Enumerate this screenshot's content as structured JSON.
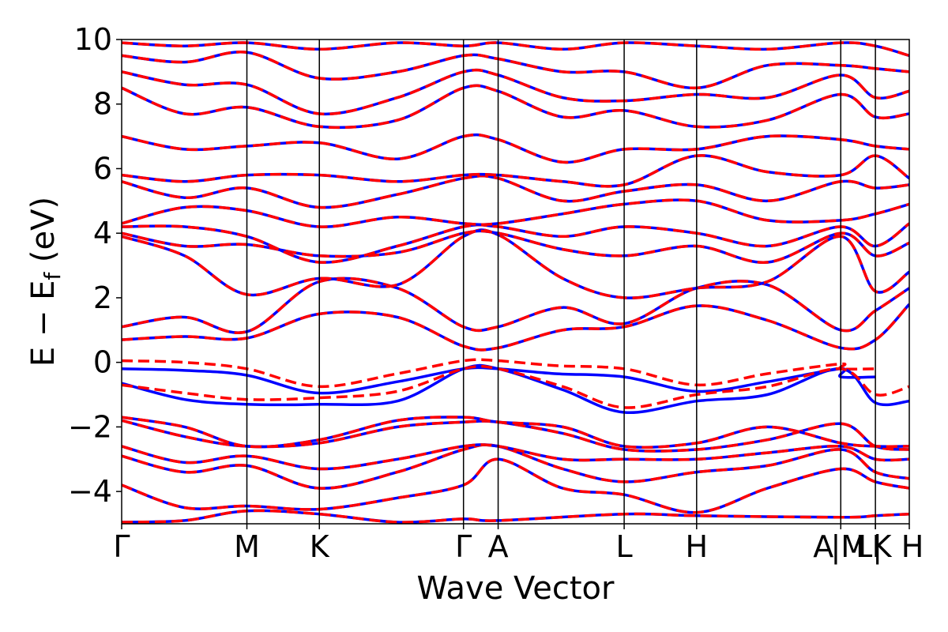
{
  "chart_data": {
    "type": "line",
    "title": "",
    "xlabel": "Wave Vector",
    "ylabel_main": "E − E",
    "ylabel_sub": "f",
    "ylabel_unit": " (eV)",
    "ylim": [
      -5,
      10
    ],
    "yticks": [
      -4,
      -2,
      0,
      2,
      4,
      6,
      8,
      10
    ],
    "ytick_labels": [
      "−4",
      "−2",
      "0",
      "2",
      "4",
      "6",
      "8",
      "10"
    ],
    "xlim": [
      0,
      1
    ],
    "kpoints": [
      {
        "label": "Γ",
        "x": 0.0
      },
      {
        "label": "M",
        "x": 0.159
      },
      {
        "label": "K",
        "x": 0.251
      },
      {
        "label": "Γ",
        "x": 0.434
      },
      {
        "label": "A",
        "x": 0.478
      },
      {
        "label": "L",
        "x": 0.638
      },
      {
        "label": "H",
        "x": 0.73
      },
      {
        "label": "A",
        "x": 0.913
      },
      {
        "label": "|M",
        "x": 0.913
      },
      {
        "label": "L|",
        "x": 0.957
      },
      {
        "label": "K",
        "x": 0.957
      },
      {
        "label": "H",
        "x": 1.0
      }
    ],
    "grid": false,
    "series_styles": [
      {
        "style": "solid",
        "color": "#0000ff"
      },
      {
        "style": "dashed",
        "color": "#ff0000"
      }
    ],
    "highlighted_bands": [
      {
        "solid": [
          [
            0,
            -0.2
          ],
          [
            0.08,
            -0.25
          ],
          [
            0.159,
            -0.4
          ],
          [
            0.25,
            -0.95
          ],
          [
            0.35,
            -0.6
          ],
          [
            0.434,
            -0.2
          ],
          [
            0.478,
            -0.2
          ],
          [
            0.55,
            -0.35
          ],
          [
            0.638,
            -0.45
          ],
          [
            0.73,
            -0.9
          ],
          [
            0.82,
            -0.6
          ],
          [
            0.913,
            -0.2
          ],
          [
            0.913,
            -0.45
          ],
          [
            0.957,
            -0.45
          ]
        ],
        "dashed": [
          [
            0,
            0.05
          ],
          [
            0.08,
            0.0
          ],
          [
            0.159,
            -0.2
          ],
          [
            0.25,
            -0.75
          ],
          [
            0.35,
            -0.35
          ],
          [
            0.434,
            0.05
          ],
          [
            0.478,
            0.05
          ],
          [
            0.55,
            -0.1
          ],
          [
            0.638,
            -0.2
          ],
          [
            0.73,
            -0.7
          ],
          [
            0.82,
            -0.35
          ],
          [
            0.913,
            -0.05
          ],
          [
            0.913,
            -0.2
          ],
          [
            0.957,
            -0.2
          ]
        ]
      },
      {
        "solid": [
          [
            0,
            -0.65
          ],
          [
            0.08,
            -1.15
          ],
          [
            0.159,
            -1.3
          ],
          [
            0.25,
            -1.3
          ],
          [
            0.35,
            -1.2
          ],
          [
            0.434,
            -0.2
          ],
          [
            0.478,
            -0.2
          ],
          [
            0.56,
            -0.85
          ],
          [
            0.638,
            -1.55
          ],
          [
            0.73,
            -1.2
          ],
          [
            0.82,
            -1.0
          ],
          [
            0.913,
            -0.2
          ],
          [
            0.957,
            -1.25
          ],
          [
            1.0,
            -1.2
          ]
        ],
        "dashed": [
          [
            0,
            -0.7
          ],
          [
            0.08,
            -0.95
          ],
          [
            0.159,
            -1.15
          ],
          [
            0.25,
            -1.1
          ],
          [
            0.35,
            -0.9
          ],
          [
            0.434,
            -0.2
          ],
          [
            0.478,
            -0.2
          ],
          [
            0.56,
            -0.75
          ],
          [
            0.638,
            -1.4
          ],
          [
            0.73,
            -1.0
          ],
          [
            0.82,
            -0.75
          ],
          [
            0.913,
            -0.2
          ],
          [
            0.957,
            -1.0
          ],
          [
            1.0,
            -0.75
          ]
        ]
      }
    ],
    "bands": [
      [
        [
          0,
          -4.95
        ],
        [
          0.08,
          -4.9
        ],
        [
          0.159,
          -4.6
        ],
        [
          0.251,
          -4.7
        ],
        [
          0.35,
          -4.95
        ],
        [
          0.434,
          -4.85
        ],
        [
          0.478,
          -4.9
        ],
        [
          0.638,
          -4.7
        ],
        [
          0.73,
          -4.75
        ],
        [
          0.913,
          -4.8
        ],
        [
          0.957,
          -4.75
        ],
        [
          1.0,
          -4.7
        ]
      ],
      [
        [
          0,
          -3.8
        ],
        [
          0.08,
          -4.5
        ],
        [
          0.159,
          -4.45
        ],
        [
          0.251,
          -4.55
        ],
        [
          0.35,
          -4.2
        ],
        [
          0.434,
          -3.8
        ],
        [
          0.478,
          -3.0
        ],
        [
          0.56,
          -3.9
        ],
        [
          0.638,
          -4.1
        ],
        [
          0.73,
          -4.65
        ],
        [
          0.82,
          -3.9
        ],
        [
          0.913,
          -3.3
        ],
        [
          0.957,
          -3.7
        ],
        [
          1.0,
          -3.9
        ]
      ],
      [
        [
          0,
          -2.9
        ],
        [
          0.08,
          -3.4
        ],
        [
          0.159,
          -3.2
        ],
        [
          0.251,
          -3.9
        ],
        [
          0.35,
          -3.4
        ],
        [
          0.434,
          -2.7
        ],
        [
          0.478,
          -2.6
        ],
        [
          0.56,
          -3.3
        ],
        [
          0.638,
          -3.7
        ],
        [
          0.73,
          -3.4
        ],
        [
          0.82,
          -3.2
        ],
        [
          0.913,
          -2.7
        ],
        [
          0.957,
          -3.4
        ],
        [
          1.0,
          -3.6
        ]
      ],
      [
        [
          0,
          -2.6
        ],
        [
          0.08,
          -3.1
        ],
        [
          0.159,
          -2.9
        ],
        [
          0.251,
          -3.3
        ],
        [
          0.35,
          -3.0
        ],
        [
          0.434,
          -2.6
        ],
        [
          0.478,
          -2.6
        ],
        [
          0.56,
          -3.0
        ],
        [
          0.638,
          -3.0
        ],
        [
          0.73,
          -3.0
        ],
        [
          0.82,
          -2.8
        ],
        [
          0.913,
          -2.6
        ],
        [
          0.957,
          -3.0
        ],
        [
          1.0,
          -3.0
        ]
      ],
      [
        [
          0,
          -1.8
        ],
        [
          0.08,
          -2.3
        ],
        [
          0.159,
          -2.6
        ],
        [
          0.251,
          -2.5
        ],
        [
          0.35,
          -2.0
        ],
        [
          0.434,
          -1.85
        ],
        [
          0.478,
          -1.85
        ],
        [
          0.56,
          -2.2
        ],
        [
          0.638,
          -2.7
        ],
        [
          0.73,
          -2.7
        ],
        [
          0.82,
          -2.4
        ],
        [
          0.913,
          -1.9
        ],
        [
          0.957,
          -2.6
        ],
        [
          1.0,
          -2.7
        ]
      ],
      [
        [
          0,
          -1.7
        ],
        [
          0.08,
          -2.0
        ],
        [
          0.159,
          -2.6
        ],
        [
          0.251,
          -2.4
        ],
        [
          0.35,
          -1.8
        ],
        [
          0.434,
          -1.7
        ],
        [
          0.478,
          -1.85
        ],
        [
          0.56,
          -2.0
        ],
        [
          0.638,
          -2.6
        ],
        [
          0.73,
          -2.5
        ],
        [
          0.82,
          -2.0
        ],
        [
          0.913,
          -2.5
        ],
        [
          0.957,
          -2.6
        ],
        [
          1.0,
          -2.6
        ]
      ],
      [
        [
          0,
          0.7
        ],
        [
          0.08,
          0.8
        ],
        [
          0.159,
          0.75
        ],
        [
          0.251,
          1.5
        ],
        [
          0.35,
          1.4
        ],
        [
          0.434,
          0.5
        ],
        [
          0.478,
          0.45
        ],
        [
          0.56,
          1.0
        ],
        [
          0.638,
          1.1
        ],
        [
          0.73,
          1.75
        ],
        [
          0.82,
          1.3
        ],
        [
          0.913,
          0.45
        ],
        [
          0.957,
          0.7
        ],
        [
          1.0,
          1.8
        ]
      ],
      [
        [
          0,
          1.1
        ],
        [
          0.08,
          1.4
        ],
        [
          0.159,
          0.95
        ],
        [
          0.251,
          2.5
        ],
        [
          0.35,
          2.3
        ],
        [
          0.434,
          1.1
        ],
        [
          0.478,
          1.1
        ],
        [
          0.56,
          1.7
        ],
        [
          0.638,
          1.2
        ],
        [
          0.73,
          2.3
        ],
        [
          0.82,
          2.4
        ],
        [
          0.913,
          1.0
        ],
        [
          0.957,
          1.6
        ],
        [
          1.0,
          2.3
        ]
      ],
      [
        [
          0,
          3.9
        ],
        [
          0.08,
          3.3
        ],
        [
          0.159,
          2.1
        ],
        [
          0.251,
          2.6
        ],
        [
          0.35,
          2.4
        ],
        [
          0.434,
          3.9
        ],
        [
          0.478,
          3.95
        ],
        [
          0.56,
          2.6
        ],
        [
          0.638,
          2.0
        ],
        [
          0.73,
          2.3
        ],
        [
          0.82,
          2.5
        ],
        [
          0.913,
          3.9
        ],
        [
          0.957,
          2.2
        ],
        [
          1.0,
          2.8
        ]
      ],
      [
        [
          0,
          4.0
        ],
        [
          0.08,
          3.6
        ],
        [
          0.159,
          3.65
        ],
        [
          0.251,
          3.3
        ],
        [
          0.35,
          3.4
        ],
        [
          0.434,
          4.0
        ],
        [
          0.478,
          4.0
        ],
        [
          0.56,
          3.5
        ],
        [
          0.638,
          3.3
        ],
        [
          0.73,
          3.6
        ],
        [
          0.82,
          3.1
        ],
        [
          0.913,
          4.0
        ],
        [
          0.957,
          3.3
        ],
        [
          1.0,
          3.7
        ]
      ],
      [
        [
          0,
          4.2
        ],
        [
          0.08,
          4.2
        ],
        [
          0.159,
          3.9
        ],
        [
          0.251,
          3.1
        ],
        [
          0.35,
          3.6
        ],
        [
          0.434,
          4.2
        ],
        [
          0.478,
          4.2
        ],
        [
          0.56,
          3.9
        ],
        [
          0.638,
          4.2
        ],
        [
          0.73,
          4.0
        ],
        [
          0.82,
          3.6
        ],
        [
          0.913,
          4.2
        ],
        [
          0.957,
          3.6
        ],
        [
          1.0,
          4.3
        ]
      ],
      [
        [
          0,
          4.3
        ],
        [
          0.08,
          4.8
        ],
        [
          0.159,
          4.7
        ],
        [
          0.251,
          4.2
        ],
        [
          0.35,
          4.5
        ],
        [
          0.434,
          4.3
        ],
        [
          0.478,
          4.3
        ],
        [
          0.56,
          4.6
        ],
        [
          0.638,
          4.9
        ],
        [
          0.73,
          5.0
        ],
        [
          0.82,
          4.4
        ],
        [
          0.913,
          4.4
        ],
        [
          0.957,
          4.6
        ],
        [
          1.0,
          4.9
        ]
      ],
      [
        [
          0,
          5.6
        ],
        [
          0.08,
          5.1
        ],
        [
          0.159,
          5.4
        ],
        [
          0.251,
          4.8
        ],
        [
          0.35,
          5.2
        ],
        [
          0.434,
          5.7
        ],
        [
          0.478,
          5.7
        ],
        [
          0.56,
          5.0
        ],
        [
          0.638,
          5.3
        ],
        [
          0.73,
          5.5
        ],
        [
          0.82,
          5.0
        ],
        [
          0.913,
          5.6
        ],
        [
          0.957,
          5.4
        ],
        [
          1.0,
          5.5
        ]
      ],
      [
        [
          0,
          5.8
        ],
        [
          0.08,
          5.6
        ],
        [
          0.159,
          5.8
        ],
        [
          0.251,
          5.8
        ],
        [
          0.35,
          5.6
        ],
        [
          0.434,
          5.8
        ],
        [
          0.478,
          5.8
        ],
        [
          0.56,
          5.6
        ],
        [
          0.638,
          5.5
        ],
        [
          0.73,
          6.4
        ],
        [
          0.82,
          5.9
        ],
        [
          0.913,
          5.8
        ],
        [
          0.957,
          6.4
        ],
        [
          1.0,
          5.7
        ]
      ],
      [
        [
          0,
          7.0
        ],
        [
          0.08,
          6.6
        ],
        [
          0.159,
          6.7
        ],
        [
          0.251,
          6.8
        ],
        [
          0.35,
          6.3
        ],
        [
          0.434,
          7.0
        ],
        [
          0.478,
          6.9
        ],
        [
          0.56,
          6.2
        ],
        [
          0.638,
          6.6
        ],
        [
          0.73,
          6.6
        ],
        [
          0.82,
          7.0
        ],
        [
          0.913,
          6.9
        ],
        [
          0.957,
          6.7
        ],
        [
          1.0,
          6.6
        ]
      ],
      [
        [
          0,
          8.5
        ],
        [
          0.08,
          7.7
        ],
        [
          0.159,
          7.9
        ],
        [
          0.251,
          7.3
        ],
        [
          0.35,
          7.5
        ],
        [
          0.434,
          8.5
        ],
        [
          0.478,
          8.4
        ],
        [
          0.56,
          7.6
        ],
        [
          0.638,
          7.8
        ],
        [
          0.73,
          7.3
        ],
        [
          0.82,
          7.5
        ],
        [
          0.913,
          8.3
        ],
        [
          0.957,
          7.6
        ],
        [
          1.0,
          7.7
        ]
      ],
      [
        [
          0,
          9.0
        ],
        [
          0.08,
          8.6
        ],
        [
          0.159,
          8.6
        ],
        [
          0.251,
          7.7
        ],
        [
          0.35,
          8.2
        ],
        [
          0.434,
          9.0
        ],
        [
          0.478,
          8.9
        ],
        [
          0.56,
          8.2
        ],
        [
          0.638,
          8.1
        ],
        [
          0.73,
          8.3
        ],
        [
          0.82,
          8.2
        ],
        [
          0.913,
          8.9
        ],
        [
          0.957,
          8.2
        ],
        [
          1.0,
          8.4
        ]
      ],
      [
        [
          0,
          9.5
        ],
        [
          0.08,
          9.3
        ],
        [
          0.159,
          9.6
        ],
        [
          0.251,
          8.8
        ],
        [
          0.35,
          9.0
        ],
        [
          0.434,
          9.5
        ],
        [
          0.478,
          9.4
        ],
        [
          0.56,
          9.0
        ],
        [
          0.638,
          9.0
        ],
        [
          0.73,
          8.5
        ],
        [
          0.82,
          9.2
        ],
        [
          0.913,
          9.2
        ],
        [
          0.957,
          9.1
        ],
        [
          1.0,
          9.0
        ]
      ],
      [
        [
          0,
          9.9
        ],
        [
          0.08,
          9.8
        ],
        [
          0.159,
          9.9
        ],
        [
          0.251,
          9.7
        ],
        [
          0.35,
          9.9
        ],
        [
          0.434,
          9.8
        ],
        [
          0.478,
          9.9
        ],
        [
          0.56,
          9.7
        ],
        [
          0.638,
          9.9
        ],
        [
          0.73,
          9.8
        ],
        [
          0.82,
          9.7
        ],
        [
          0.913,
          9.9
        ],
        [
          0.957,
          9.8
        ],
        [
          1.0,
          9.5
        ]
      ]
    ]
  }
}
